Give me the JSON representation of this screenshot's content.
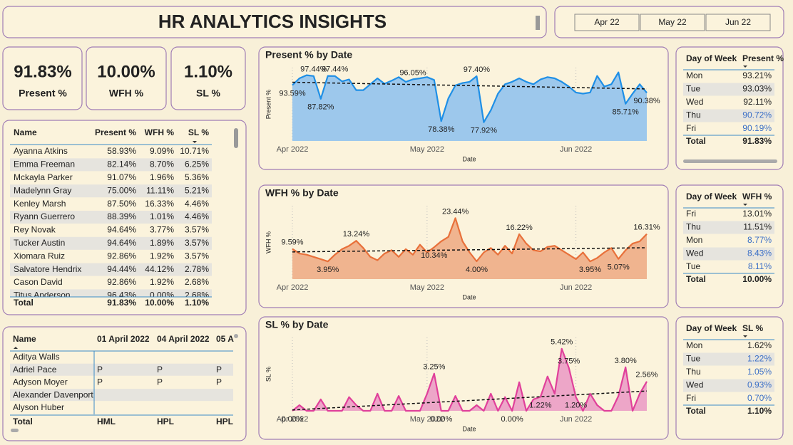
{
  "header": {
    "title": "HR ANALYTICS INSIGHTS",
    "slicer": [
      "Apr 22",
      "May 22",
      "Jun 22"
    ]
  },
  "kpis": [
    {
      "value": "91.83%",
      "label": "Present  %"
    },
    {
      "value": "10.00%",
      "label": "WFH %"
    },
    {
      "value": "1.10%",
      "label": "SL %"
    }
  ],
  "employee_table": {
    "columns": [
      "Name",
      "Present %",
      "WFH %",
      "SL %"
    ],
    "rows": [
      [
        "Ayanna Atkins",
        "58.93%",
        "9.09%",
        "10.71%"
      ],
      [
        "Emma Freeman",
        "82.14%",
        "8.70%",
        "6.25%"
      ],
      [
        "Mckayla Parker",
        "91.07%",
        "1.96%",
        "5.36%"
      ],
      [
        "Madelynn Gray",
        "75.00%",
        "11.11%",
        "5.21%"
      ],
      [
        "Kenley Marsh",
        "87.50%",
        "16.33%",
        "4.46%"
      ],
      [
        "Ryann Guerrero",
        "88.39%",
        "1.01%",
        "4.46%"
      ],
      [
        "Rey Novak",
        "94.64%",
        "3.77%",
        "3.57%"
      ],
      [
        "Tucker Austin",
        "94.64%",
        "1.89%",
        "3.57%"
      ],
      [
        "Xiomara Ruiz",
        "92.86%",
        "1.92%",
        "3.57%"
      ],
      [
        "Salvatore Hendrix",
        "94.44%",
        "44.12%",
        "2.78%"
      ],
      [
        "Cason David",
        "92.86%",
        "1.92%",
        "2.68%"
      ],
      [
        "Titus Anderson",
        "96.43%",
        "0.00%",
        "2.68%"
      ]
    ],
    "total": [
      "Total",
      "91.83%",
      "10.00%",
      "1.10%"
    ]
  },
  "attendance_table": {
    "columns": [
      "Name",
      "01 April 2022",
      "04 April 2022",
      "05 A"
    ],
    "rows": [
      [
        "Aditya Walls",
        null,
        null,
        null
      ],
      [
        "Adriel Pace",
        "P",
        "P",
        "P"
      ],
      [
        "Adyson Moyer",
        "P",
        "P",
        "P"
      ],
      [
        "Alexander Davenport",
        null,
        null,
        null
      ],
      [
        "Alyson Huber",
        null,
        null,
        null
      ]
    ],
    "total": [
      "Total",
      "HML",
      "HPL",
      "HPL"
    ]
  },
  "dow_tables": [
    {
      "columns": [
        "Day of Week",
        "Present %"
      ],
      "rows": [
        [
          "Mon",
          "93.21%"
        ],
        [
          "Tue",
          "93.03%"
        ],
        [
          "Wed",
          "92.11%"
        ],
        [
          "Thu",
          "90.72%"
        ],
        [
          "Fri",
          "90.19%"
        ]
      ],
      "highlight": [
        false,
        false,
        false,
        true,
        true
      ],
      "highlight_color": "#3b6fc7",
      "total": [
        "Total",
        "91.83%"
      ]
    },
    {
      "columns": [
        "Day of Week",
        "WFH %"
      ],
      "rows": [
        [
          "Fri",
          "13.01%"
        ],
        [
          "Thu",
          "11.51%"
        ],
        [
          "Mon",
          "8.77%"
        ],
        [
          "Wed",
          "8.43%"
        ],
        [
          "Tue",
          "8.11%"
        ]
      ],
      "highlight": [
        false,
        false,
        true,
        true,
        true
      ],
      "highlight_color": "#3b6fc7",
      "total": [
        "Total",
        "10.00%"
      ]
    },
    {
      "columns": [
        "Day of Week",
        "SL %"
      ],
      "rows": [
        [
          "Mon",
          "1.62%"
        ],
        [
          "Tue",
          "1.22%"
        ],
        [
          "Thu",
          "1.05%"
        ],
        [
          "Wed",
          "0.93%"
        ],
        [
          "Fri",
          "0.70%"
        ]
      ],
      "highlight": [
        false,
        true,
        true,
        true,
        true
      ],
      "highlight_color": "#3b6fc7",
      "total": [
        "Total",
        "1.10%"
      ]
    }
  ],
  "chart_data": [
    {
      "type": "area",
      "title": "Present % by Date",
      "x_label": "Date",
      "y_label": "Present %",
      "color": "#1f8fe6",
      "fill_color": "#9dc8ec",
      "trendline": true,
      "ylim": [
        70,
        101
      ],
      "categories": [
        "Apr 2022",
        null,
        null,
        null,
        null,
        null,
        null,
        null,
        null,
        null,
        null,
        null,
        null,
        null,
        null,
        null,
        null,
        null,
        null,
        "May 2022",
        null,
        null,
        null,
        null,
        null,
        null,
        null,
        null,
        null,
        null,
        null,
        null,
        null,
        null,
        null,
        null,
        null,
        null,
        null,
        null,
        "Jun 2022",
        null,
        null,
        null,
        null,
        null,
        null,
        null,
        null,
        null,
        null
      ],
      "values": [
        93.59,
        96.5,
        97.8,
        97.44,
        87.82,
        97.5,
        97.44,
        95.2,
        96.0,
        91.5,
        91.5,
        94.0,
        96.5,
        94.2,
        95.5,
        97.0,
        95.0,
        96.05,
        96.5,
        97.0,
        95.8,
        78.38,
        88.0,
        93.5,
        94.5,
        95.0,
        97.4,
        77.92,
        83.0,
        90.0,
        94.0,
        95.0,
        96.5,
        95.0,
        94.0,
        96.0,
        97.0,
        96.5,
        95.0,
        93.0,
        90.5,
        90.0,
        90.5,
        97.5,
        93.0,
        94.0,
        99.0,
        85.71,
        90.0,
        94.0,
        90.38
      ],
      "value_labels": [
        "93.59%",
        null,
        null,
        "97.44%",
        "87.82%",
        null,
        "97.44%",
        null,
        null,
        null,
        null,
        null,
        null,
        null,
        null,
        null,
        null,
        "96.05%",
        null,
        null,
        null,
        "78.38%",
        null,
        null,
        null,
        null,
        "97.40%",
        "77.92%",
        null,
        null,
        null,
        null,
        null,
        null,
        null,
        null,
        null,
        null,
        null,
        null,
        null,
        null,
        null,
        null,
        null,
        null,
        null,
        "85.71%",
        null,
        null,
        "90.38%"
      ]
    },
    {
      "type": "area",
      "title": "WFH % by Date",
      "x_label": "Date",
      "y_label": "WFH %",
      "color": "#e8703a",
      "fill_color": "#f0b48f",
      "trendline": true,
      "ylim": [
        -4,
        29
      ],
      "categories": [
        "Apr 2022",
        null,
        null,
        null,
        null,
        null,
        null,
        null,
        null,
        null,
        null,
        null,
        null,
        null,
        null,
        null,
        null,
        null,
        null,
        "May 2022",
        null,
        null,
        null,
        null,
        null,
        null,
        null,
        null,
        null,
        null,
        null,
        null,
        null,
        null,
        null,
        null,
        null,
        null,
        null,
        null,
        "Jun 2022",
        null,
        null,
        null,
        null,
        null,
        null,
        null,
        null,
        null,
        null
      ],
      "values": [
        9.59,
        7.5,
        7.0,
        6.0,
        5.0,
        3.95,
        7.0,
        9.5,
        11.0,
        13.24,
        10.0,
        6.0,
        4.5,
        7.5,
        9.0,
        6.0,
        9.5,
        7.0,
        11.5,
        8.0,
        10.34,
        13.0,
        15.0,
        23.44,
        13.0,
        8.0,
        4.0,
        8.0,
        10.0,
        7.0,
        11.0,
        7.5,
        16.22,
        12.0,
        9.0,
        8.5,
        10.5,
        11.0,
        9.0,
        7.0,
        5.0,
        8.0,
        3.95,
        5.5,
        8.0,
        10.0,
        5.07,
        9.0,
        12.0,
        13.0,
        16.31
      ],
      "value_labels": [
        "9.59%",
        null,
        null,
        null,
        null,
        "3.95%",
        null,
        null,
        null,
        "13.24%",
        null,
        null,
        null,
        null,
        null,
        null,
        null,
        null,
        null,
        null,
        "10.34%",
        null,
        null,
        "23.44%",
        null,
        null,
        "4.00%",
        null,
        null,
        null,
        null,
        null,
        "16.22%",
        null,
        null,
        null,
        null,
        null,
        null,
        null,
        null,
        null,
        "3.95%",
        null,
        null,
        null,
        "5.07%",
        null,
        null,
        null,
        "16.31%"
      ]
    },
    {
      "type": "area",
      "title": "SL % by Date",
      "x_label": "Date",
      "y_label": "SL %",
      "color": "#e0409a",
      "fill_color": "#eda6c8",
      "trendline": true,
      "ylim": [
        0,
        6.4
      ],
      "categories": [
        "Apr 2022",
        null,
        null,
        null,
        null,
        null,
        null,
        null,
        null,
        null,
        null,
        null,
        null,
        null,
        null,
        null,
        null,
        null,
        null,
        "May 2022",
        null,
        null,
        null,
        null,
        null,
        null,
        null,
        null,
        null,
        null,
        null,
        null,
        null,
        null,
        null,
        null,
        null,
        null,
        null,
        null,
        "Jun 2022",
        null,
        null,
        null,
        null,
        null,
        null,
        null,
        null,
        null,
        null
      ],
      "values": [
        0.0,
        0.5,
        0.0,
        0.0,
        1.0,
        0.0,
        0.0,
        0.0,
        1.2,
        0.5,
        0.0,
        0.0,
        1.5,
        0.0,
        0.0,
        1.3,
        0.0,
        0.0,
        0.0,
        1.5,
        3.25,
        0.0,
        0.0,
        1.3,
        0.0,
        0.0,
        0.5,
        0.0,
        1.5,
        0.0,
        1.2,
        0.0,
        2.5,
        0.0,
        1.0,
        1.22,
        3.0,
        1.5,
        5.42,
        3.75,
        1.2,
        0.0,
        1.5,
        0.5,
        0.0,
        0.0,
        1.3,
        3.8,
        0.0,
        1.5,
        2.56
      ],
      "value_labels": [
        "0.00%",
        null,
        null,
        null,
        null,
        null,
        null,
        null,
        null,
        null,
        null,
        null,
        null,
        null,
        null,
        null,
        null,
        null,
        null,
        null,
        "3.25%",
        "0.00%",
        null,
        null,
        null,
        null,
        null,
        null,
        null,
        null,
        null,
        "0.00%",
        null,
        null,
        null,
        "1.22%",
        null,
        null,
        "5.42%",
        "3.75%",
        "1.20%",
        null,
        null,
        null,
        null,
        null,
        null,
        "3.80%",
        null,
        null,
        "2.56%"
      ]
    }
  ]
}
